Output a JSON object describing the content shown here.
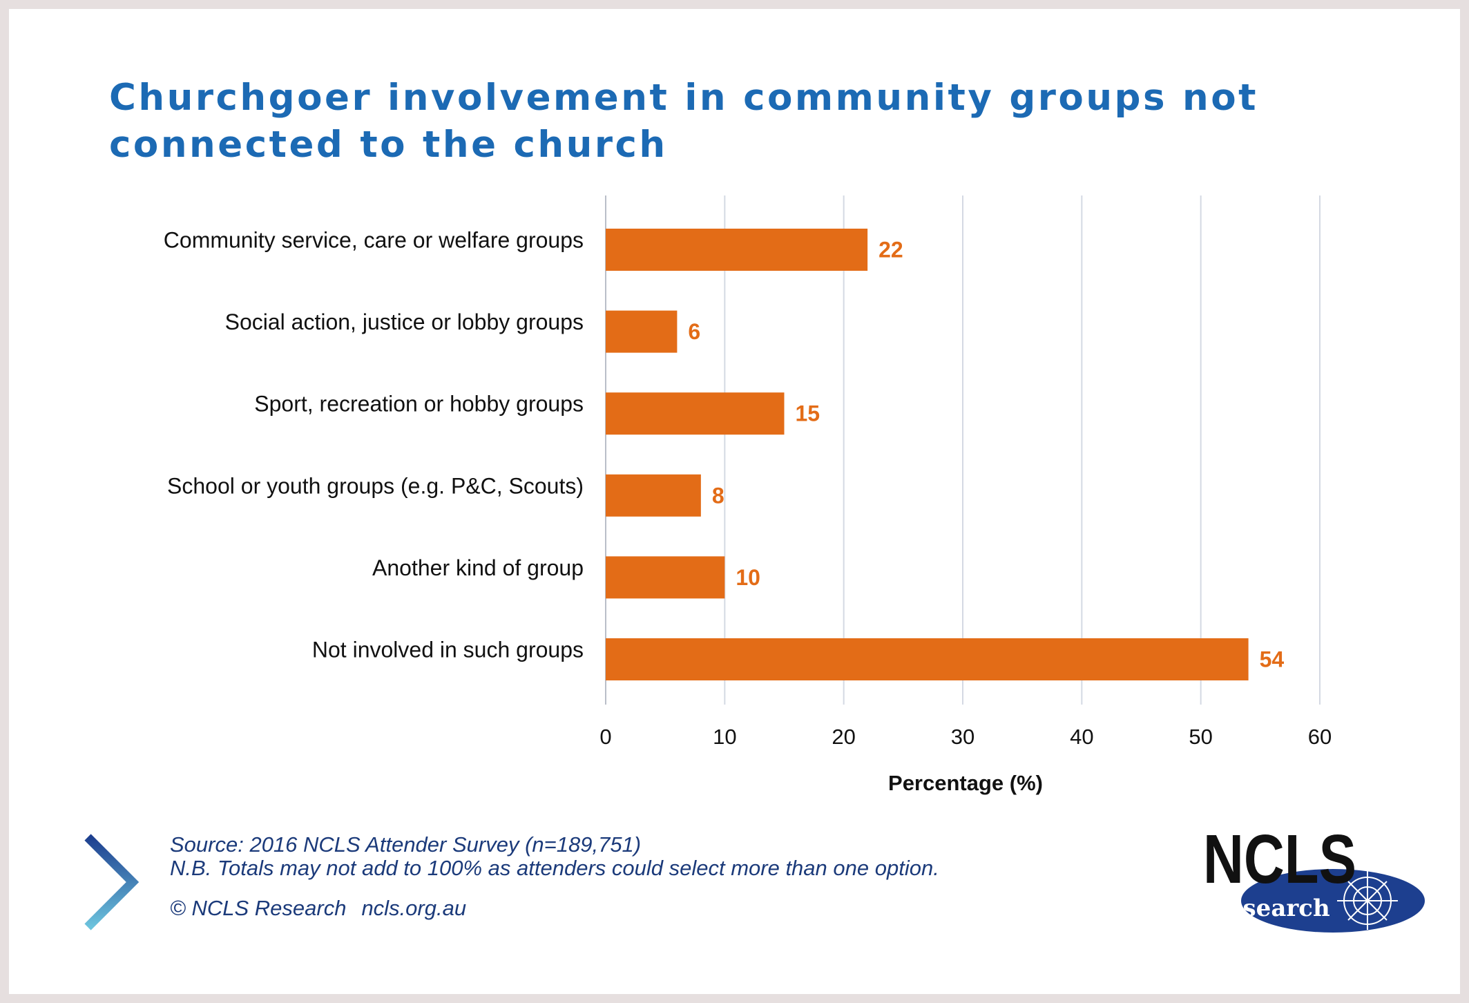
{
  "title": "Churchgoer involvement in community groups not connected to the church",
  "chart_data": {
    "type": "bar",
    "orientation": "horizontal",
    "categories": [
      "Community service, care or welfare groups",
      "Social action, justice or lobby groups",
      "Sport, recreation or hobby groups",
      "School or youth groups (e.g. P&C, Scouts)",
      "Another kind of group",
      "Not involved in such groups"
    ],
    "values": [
      22,
      6,
      15,
      8,
      10,
      54
    ],
    "xlabel": "Percentage (%)",
    "xlim": [
      0,
      60
    ],
    "xticks": [
      0,
      10,
      20,
      30,
      40,
      50,
      60
    ],
    "grid": "vertical",
    "data_labels": true,
    "bar_color": "#e36c17",
    "label_color": "#e36c17"
  },
  "footer": {
    "source": "Source: 2016 NCLS Attender Survey (n=189,751)",
    "note": "N.B. Totals may not add to 100% as attenders could select more than one option.",
    "copyright": "© NCLS Research",
    "website": "ncls.org.au"
  },
  "logo": {
    "name": "NCLS",
    "subtitle": "research"
  },
  "colors": {
    "title": "#1c6ab4",
    "bar": "#e36c17",
    "footer_text": "#1b3a7a",
    "logo_blue": "#1d3f8f",
    "gridline": "#d4d9e3",
    "frame": "#e6dfdf"
  },
  "icons": [
    "chevron-right-icon",
    "compass-icon"
  ]
}
